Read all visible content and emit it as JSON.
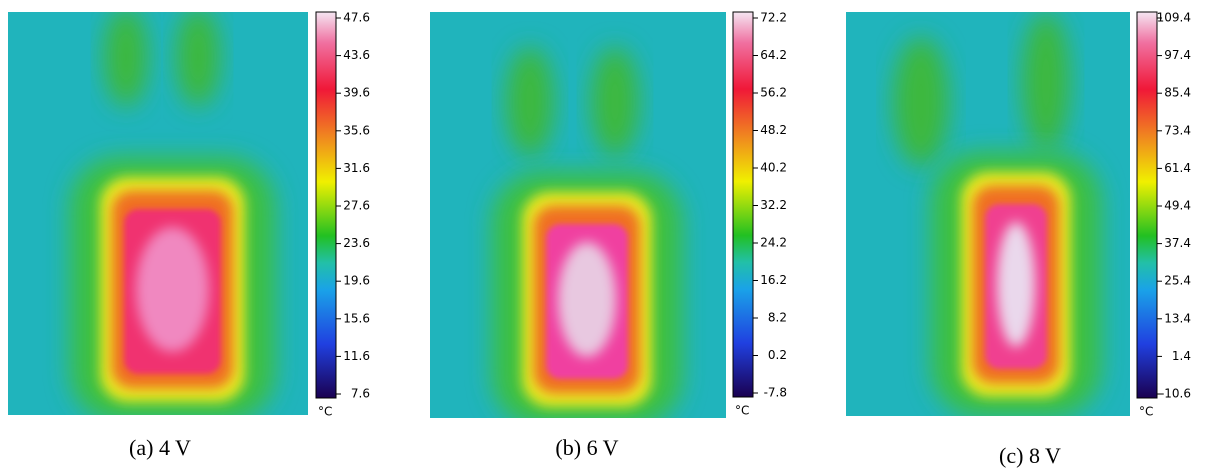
{
  "panels": [
    {
      "scale_ticks": [
        "47.6",
        "43.6",
        "39.6",
        "35.6",
        "31.6",
        "27.6",
        "23.6",
        "19.6",
        "15.6",
        "11.6",
        "7.6"
      ],
      "unit": "°C",
      "caption": "(a)  4 V"
    },
    {
      "scale_ticks": [
        "72.2",
        "64.2",
        "56.2",
        "48.2",
        "40.2",
        "32.2",
        "24.2",
        "16.2",
        "8.2",
        "0.2",
        "-7.8"
      ],
      "unit": "°C",
      "caption": "(b)  6 V"
    },
    {
      "scale_ticks": [
        "109.4",
        "97.4",
        "85.4",
        "73.4",
        "61.4",
        "49.4",
        "37.4",
        "25.4",
        "13.4",
        "1.4",
        "-10.6"
      ],
      "unit": "°C",
      "caption": "(c)  8 V"
    }
  ]
}
